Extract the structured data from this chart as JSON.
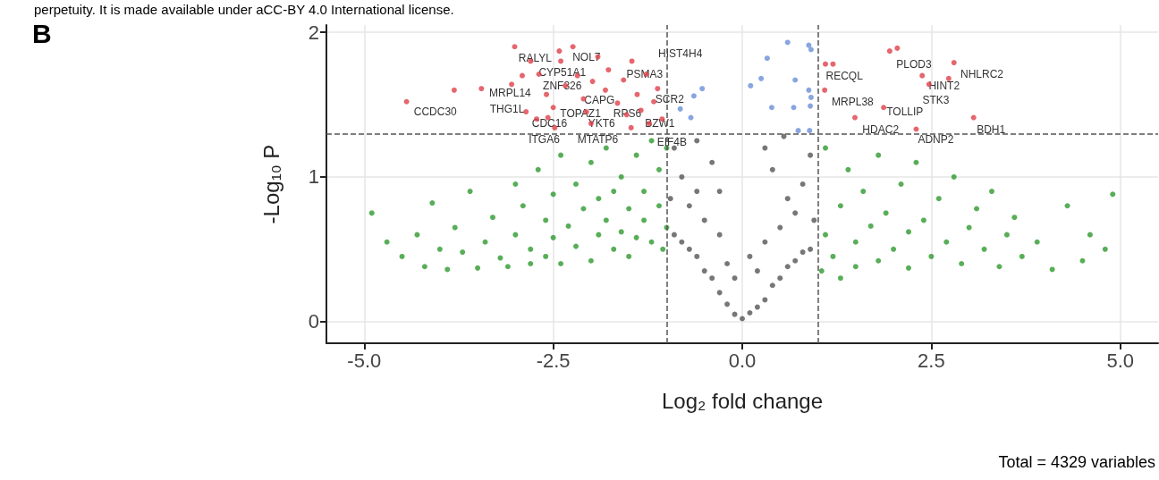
{
  "chart_data": {
    "type": "scatter",
    "xlabel": "Log₂ fold change",
    "ylabel": "-Log₁₀ P",
    "xlim": [
      -5.5,
      5.5
    ],
    "ylim": [
      -0.15,
      2.05
    ],
    "xticks": [
      {
        "value": -5,
        "label": "-5.0"
      },
      {
        "value": -2.5,
        "label": "-2.5"
      },
      {
        "value": 0,
        "label": "0.0"
      },
      {
        "value": 2.5,
        "label": "2.5"
      },
      {
        "value": 5,
        "label": "5.0"
      }
    ],
    "yticks": [
      0,
      1,
      2
    ],
    "grid": true,
    "marker": "circle",
    "ref_lines": [
      {
        "axis": "x",
        "value": -1,
        "line_style": "dashed",
        "color": "#555555"
      },
      {
        "axis": "x",
        "value": 1,
        "line_style": "dashed",
        "color": "#555555"
      },
      {
        "axis": "y",
        "value": 1.3,
        "line_style": "dashed",
        "color": "#555555"
      }
    ],
    "series": [
      {
        "color": "#555555",
        "x": [
          0,
          -0.1,
          0.1,
          -0.2,
          0.2,
          -0.3,
          0.3,
          -0.4,
          0.4,
          -0.5,
          0.5,
          -0.6,
          0.6,
          -0.7,
          0.7,
          -0.8,
          0.8,
          -0.9,
          0.9,
          -0.2,
          0.2,
          -0.3,
          0.3,
          -0.5,
          0.5,
          -0.6,
          0.6,
          -0.8,
          0.8,
          -0.4,
          0.4,
          -0.9,
          0.9,
          -0.1,
          0.1,
          -0.7,
          0.7,
          -0.3,
          0.3,
          -0.6,
          0.55,
          -0.95,
          0.95
        ],
        "values": [
          0.02,
          0.05,
          0.06,
          0.12,
          0.1,
          0.2,
          0.15,
          0.3,
          0.25,
          0.35,
          0.3,
          0.45,
          0.38,
          0.5,
          0.42,
          0.55,
          0.48,
          0.6,
          0.5,
          0.4,
          0.35,
          0.6,
          0.55,
          0.7,
          0.65,
          0.9,
          0.85,
          1.0,
          0.95,
          1.1,
          1.05,
          1.2,
          1.15,
          0.3,
          0.45,
          0.8,
          0.75,
          0.9,
          1.2,
          1.25,
          1.28,
          0.85,
          0.7
        ]
      },
      {
        "color": "#2e9a2e",
        "x": [
          -4.9,
          -4.7,
          -4.5,
          -4.3,
          -4.2,
          -4.1,
          -4.0,
          -3.9,
          -3.8,
          -3.7,
          -3.6,
          -3.5,
          -3.4,
          -3.3,
          -3.2,
          -3.1,
          -3.0,
          -3.0,
          -2.9,
          -2.8,
          -2.8,
          -2.7,
          -2.6,
          -2.6,
          -2.5,
          -2.5,
          -2.4,
          -2.4,
          -2.3,
          -2.2,
          -2.2,
          -2.1,
          -2.0,
          -2.0,
          -1.9,
          -1.9,
          -1.8,
          -1.8,
          -1.7,
          -1.7,
          -1.6,
          -1.6,
          -1.5,
          -1.5,
          -1.4,
          -1.4,
          -1.3,
          -1.3,
          -1.2,
          -1.2,
          -1.1,
          -1.1,
          -1.05,
          -1.0,
          -1.0,
          1.05,
          1.1,
          1.1,
          1.2,
          1.3,
          1.3,
          1.4,
          1.5,
          1.5,
          1.6,
          1.7,
          1.8,
          1.8,
          1.9,
          2.0,
          2.1,
          2.2,
          2.2,
          2.3,
          2.4,
          2.5,
          2.6,
          2.7,
          2.8,
          2.9,
          3.0,
          3.1,
          3.2,
          3.3,
          3.4,
          3.5,
          3.6,
          3.7,
          3.9,
          4.1,
          4.3,
          4.5,
          4.6,
          4.8,
          4.9
        ],
        "values": [
          0.75,
          0.55,
          0.45,
          0.6,
          0.38,
          0.82,
          0.5,
          0.36,
          0.65,
          0.48,
          0.9,
          0.37,
          0.55,
          0.72,
          0.44,
          0.38,
          0.95,
          0.6,
          0.8,
          0.5,
          0.4,
          1.05,
          0.7,
          0.45,
          0.58,
          0.88,
          1.15,
          0.4,
          0.66,
          0.52,
          0.95,
          0.78,
          1.1,
          0.42,
          0.6,
          0.85,
          0.7,
          1.2,
          0.5,
          0.9,
          0.62,
          1.0,
          0.45,
          0.78,
          1.15,
          0.58,
          0.7,
          0.9,
          1.25,
          0.55,
          0.8,
          1.05,
          0.5,
          0.65,
          1.2,
          0.35,
          0.6,
          1.2,
          0.45,
          0.8,
          0.3,
          1.05,
          0.55,
          0.38,
          0.9,
          0.66,
          1.15,
          0.42,
          0.75,
          0.5,
          0.95,
          0.62,
          0.37,
          1.1,
          0.7,
          0.45,
          0.85,
          0.55,
          1.0,
          0.4,
          0.65,
          0.78,
          0.5,
          0.9,
          0.38,
          0.6,
          0.72,
          0.45,
          0.55,
          0.36,
          0.8,
          0.42,
          0.6,
          0.5,
          0.88
        ]
      },
      {
        "color": "#6a8fd8",
        "x": [
          0.33,
          0.25,
          0.11,
          0.6,
          0.88,
          0.91,
          0.7,
          0.88,
          0.91,
          0.39,
          0.68,
          0.9,
          0.74,
          0.89,
          -0.53,
          -0.64,
          -0.82,
          -0.68
        ],
        "values": [
          1.82,
          1.68,
          1.63,
          1.93,
          1.91,
          1.88,
          1.67,
          1.6,
          1.55,
          1.48,
          1.48,
          1.49,
          1.32,
          1.32,
          1.61,
          1.56,
          1.47,
          1.41
        ]
      },
      {
        "color": "#e0404a",
        "x": [
          -4.44,
          -3.81,
          -3.45,
          -3.01,
          -3.05,
          -2.91,
          -2.8,
          -2.69,
          -2.59,
          -2.5,
          -2.42,
          -2.4,
          -2.34,
          -2.24,
          -2.18,
          -2.1,
          -2.06,
          -1.98,
          -1.91,
          -1.81,
          -1.77,
          -1.65,
          -1.57,
          -1.53,
          -1.46,
          -1.39,
          -1.34,
          -1.27,
          -1.17,
          -1.12,
          -1.06,
          -2.86,
          -2.72,
          -2.57,
          -2.48,
          -2.0,
          -1.47,
          -1.23,
          1.1,
          1.2,
          1.09,
          1.49,
          1.87,
          1.95,
          2.05,
          2.38,
          2.47,
          2.8,
          2.73,
          2.3,
          3.06
        ],
        "values": [
          1.52,
          1.6,
          1.61,
          1.9,
          1.64,
          1.7,
          1.8,
          1.71,
          1.57,
          1.48,
          1.87,
          1.8,
          1.63,
          1.9,
          1.7,
          1.54,
          1.45,
          1.66,
          1.83,
          1.6,
          1.74,
          1.51,
          1.67,
          1.43,
          1.8,
          1.57,
          1.46,
          1.71,
          1.52,
          1.61,
          1.4,
          1.45,
          1.4,
          1.41,
          1.34,
          1.37,
          1.34,
          1.37,
          1.78,
          1.78,
          1.6,
          1.41,
          1.48,
          1.87,
          1.89,
          1.7,
          1.64,
          1.79,
          1.68,
          1.33,
          1.41
        ]
      }
    ],
    "annotations": [
      "perpetuity. It is made available under aCC-BY 4.0 International license.",
      "B",
      "Total = 4329 variables",
      "CCDC30",
      "MRPL14",
      "THG1L",
      "RALYL",
      "CYP51A1",
      "ZNF326",
      "NOL7",
      "HIST4H4",
      "PSMA3",
      "CAPG",
      "SCR2",
      "TOPAZ1",
      "RPS6",
      "CDC16",
      "YKT6",
      "BZW1",
      "ITGA6",
      "MTATP6",
      "EIF4B",
      "RECQL",
      "PLOD3",
      "NHLRC2",
      "HINT2",
      "STK3",
      "MRPL38",
      "TOLLIP",
      "HDAC2",
      "ADNP2",
      "BDH1"
    ]
  }
}
